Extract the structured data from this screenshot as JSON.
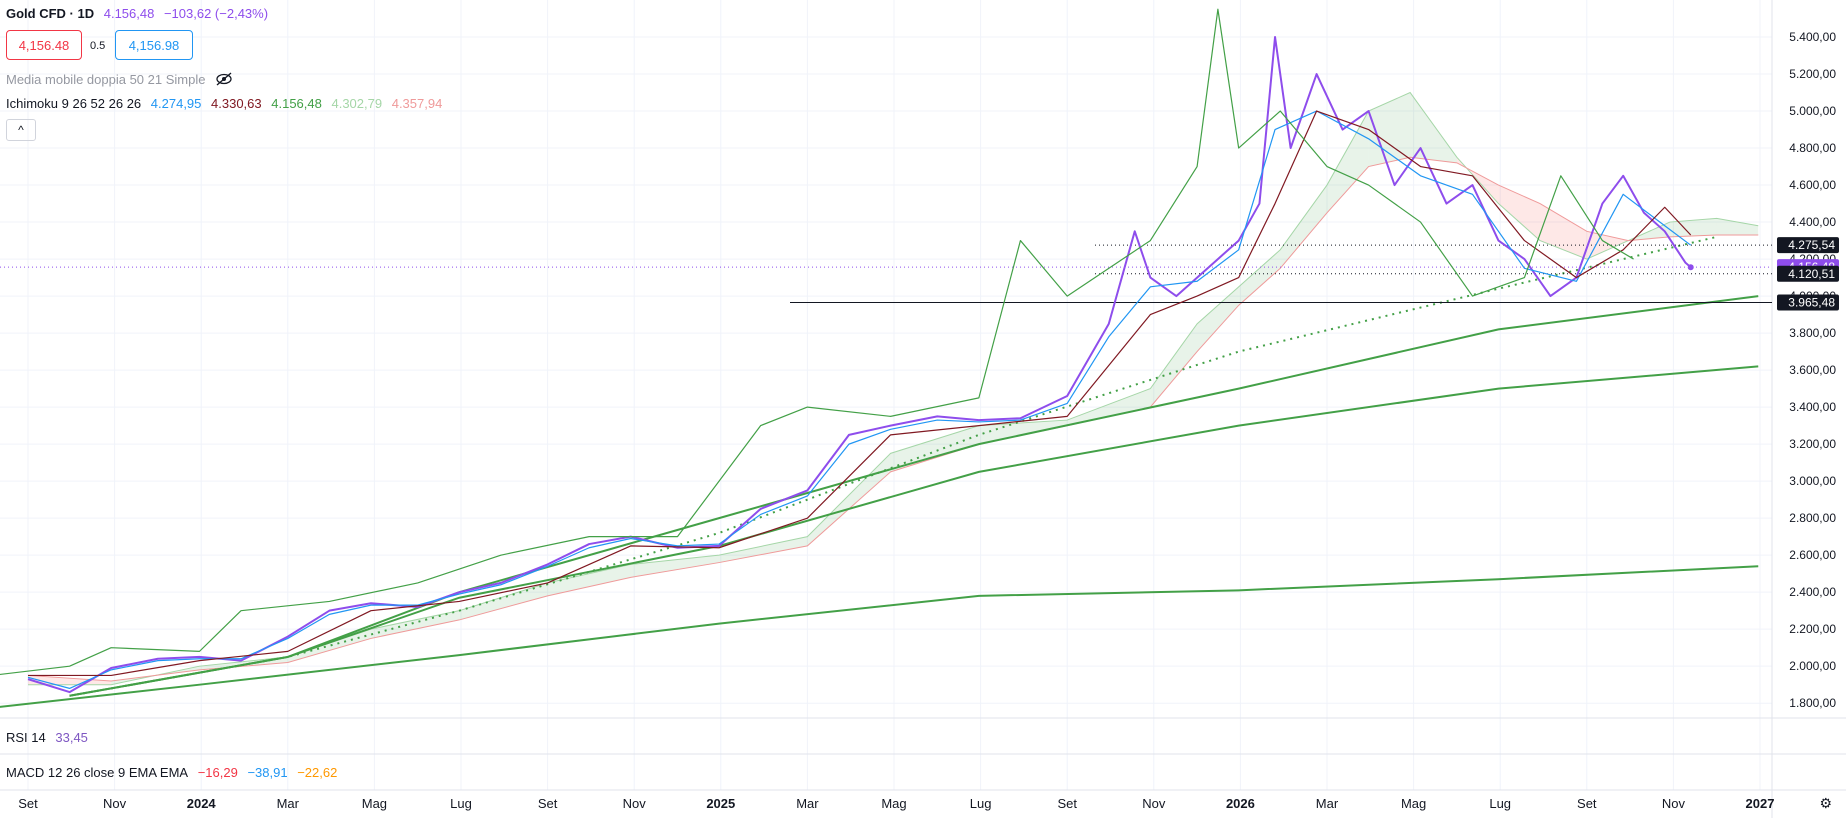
{
  "header": {
    "symbol": "Gold CFD · 1D",
    "last": "4.156,48",
    "change": "−103,62 (−2,43%)",
    "bid": "4,156.48",
    "spread": "0.5",
    "ask": "4,156.98"
  },
  "indicators": {
    "ma_label": "Media mobile doppia 50 21 Simple",
    "ichimoku_label": "Ichimoku 9 26 52 26 26",
    "ichimoku_values": [
      {
        "value": "4.274,95",
        "color": "#2196f3"
      },
      {
        "value": "4.330,63",
        "color": "#801922"
      },
      {
        "value": "4.156,48",
        "color": "#43a047"
      },
      {
        "value": "4.302,79",
        "color": "#a5d6a7"
      },
      {
        "value": "4.357,94",
        "color": "#ef9a9a"
      }
    ],
    "collapse": "^"
  },
  "rsi": {
    "label": "RSI 14",
    "value": "33,45"
  },
  "macd": {
    "label": "MACD 12 26 close 9 EMA EMA",
    "values": [
      {
        "value": "−16,29",
        "color": "#f23645"
      },
      {
        "value": "−38,91",
        "color": "#2196f3"
      },
      {
        "value": "−22,62",
        "color": "#ff9800"
      }
    ]
  },
  "chart_data": {
    "type": "line",
    "title": "Gold CFD · 1D",
    "xlabel": "",
    "ylabel": "",
    "ylim": [
      1720,
      5600
    ],
    "x_ticks": [
      "Set",
      "Nov",
      "2024",
      "Mar",
      "Mag",
      "Lug",
      "Set",
      "Nov",
      "2025",
      "Mar",
      "Mag",
      "Lug",
      "Set",
      "Nov",
      "2026",
      "Mar",
      "Mag",
      "Lug",
      "Set",
      "Nov",
      "2027"
    ],
    "x_bold": [
      "2024",
      "2025",
      "2026",
      "2027"
    ],
    "y_ticks": [
      1800,
      2000,
      2200,
      2400,
      2600,
      2800,
      3000,
      3200,
      3400,
      3600,
      3800,
      4000,
      4200,
      4400,
      4600,
      4800,
      5000,
      5200,
      5400
    ],
    "y_tick_labels": [
      "1.800,00",
      "2.000,00",
      "2.200,00",
      "2.400,00",
      "2.600,00",
      "2.800,00",
      "3.000,00",
      "3.200,00",
      "3.400,00",
      "3.600,00",
      "3.800,00",
      "4.000,00",
      "4.200,00",
      "4.400,00",
      "4.600,00",
      "4.800,00",
      "5.000,00",
      "5.200,00",
      "5.400,00"
    ],
    "price_levels": [
      {
        "value": 4275.54,
        "label": "4.275,54",
        "bg": "#131722",
        "style": "dotted"
      },
      {
        "value": 4156.48,
        "label": "4.156,48",
        "bg": "#8e4dec",
        "style": "dotted-current"
      },
      {
        "value": 4120.51,
        "label": "4.120,51",
        "bg": "#131722",
        "style": "dotted"
      },
      {
        "value": 3965.48,
        "label": "3.965,48",
        "bg": "#131722",
        "style": "solid"
      }
    ],
    "series": [
      {
        "name": "Close",
        "color": "#8e4dec",
        "points": [
          [
            2023.67,
            1930
          ],
          [
            2023.75,
            1860
          ],
          [
            2023.83,
            1990
          ],
          [
            2023.92,
            2040
          ],
          [
            2024.0,
            2050
          ],
          [
            2024.08,
            2030
          ],
          [
            2024.17,
            2160
          ],
          [
            2024.25,
            2300
          ],
          [
            2024.33,
            2340
          ],
          [
            2024.42,
            2320
          ],
          [
            2024.5,
            2400
          ],
          [
            2024.58,
            2450
          ],
          [
            2024.67,
            2550
          ],
          [
            2024.75,
            2660
          ],
          [
            2024.83,
            2700
          ],
          [
            2024.92,
            2640
          ],
          [
            2025.0,
            2650
          ],
          [
            2025.08,
            2850
          ],
          [
            2025.17,
            2950
          ],
          [
            2025.25,
            3250
          ],
          [
            2025.33,
            3300
          ],
          [
            2025.42,
            3350
          ],
          [
            2025.5,
            3330
          ],
          [
            2025.58,
            3340
          ],
          [
            2025.67,
            3460
          ],
          [
            2025.75,
            3850
          ],
          [
            2025.8,
            4350
          ],
          [
            2025.83,
            4100
          ],
          [
            2025.88,
            4000
          ],
          [
            2025.92,
            4100
          ],
          [
            2025.96,
            4200
          ],
          [
            2026.0,
            4300
          ],
          [
            2026.04,
            4500
          ],
          [
            2026.07,
            5400
          ],
          [
            2026.1,
            4800
          ],
          [
            2026.15,
            5200
          ],
          [
            2026.2,
            4900
          ],
          [
            2026.25,
            5000
          ],
          [
            2026.3,
            4600
          ],
          [
            2026.35,
            4800
          ],
          [
            2026.4,
            4500
          ],
          [
            2026.45,
            4600
          ],
          [
            2026.5,
            4300
          ],
          [
            2026.55,
            4200
          ],
          [
            2026.6,
            4000
          ],
          [
            2026.65,
            4100
          ],
          [
            2026.7,
            4500
          ],
          [
            2026.74,
            4650
          ],
          [
            2026.78,
            4450
          ],
          [
            2026.82,
            4350
          ],
          [
            2026.86,
            4180
          ],
          [
            2026.87,
            4156
          ]
        ]
      },
      {
        "name": "Conversion",
        "color": "#2196f3",
        "points": [
          [
            2023.67,
            1940
          ],
          [
            2023.75,
            1880
          ],
          [
            2023.83,
            1980
          ],
          [
            2023.92,
            2030
          ],
          [
            2024.0,
            2040
          ],
          [
            2024.08,
            2040
          ],
          [
            2024.17,
            2150
          ],
          [
            2024.25,
            2280
          ],
          [
            2024.33,
            2330
          ],
          [
            2024.42,
            2330
          ],
          [
            2024.5,
            2390
          ],
          [
            2024.58,
            2440
          ],
          [
            2024.67,
            2540
          ],
          [
            2024.75,
            2640
          ],
          [
            2024.83,
            2690
          ],
          [
            2024.92,
            2650
          ],
          [
            2025.0,
            2660
          ],
          [
            2025.08,
            2820
          ],
          [
            2025.17,
            2920
          ],
          [
            2025.25,
            3200
          ],
          [
            2025.33,
            3280
          ],
          [
            2025.42,
            3330
          ],
          [
            2025.5,
            3320
          ],
          [
            2025.58,
            3330
          ],
          [
            2025.67,
            3420
          ],
          [
            2025.75,
            3780
          ],
          [
            2025.83,
            4050
          ],
          [
            2025.92,
            4080
          ],
          [
            2026.0,
            4250
          ],
          [
            2026.07,
            4900
          ],
          [
            2026.15,
            5000
          ],
          [
            2026.25,
            4850
          ],
          [
            2026.35,
            4650
          ],
          [
            2026.45,
            4550
          ],
          [
            2026.55,
            4150
          ],
          [
            2026.65,
            4080
          ],
          [
            2026.74,
            4550
          ],
          [
            2026.82,
            4380
          ],
          [
            2026.87,
            4275
          ]
        ]
      },
      {
        "name": "Base",
        "color": "#801922",
        "points": [
          [
            2023.67,
            1950
          ],
          [
            2023.83,
            1950
          ],
          [
            2024.0,
            2030
          ],
          [
            2024.17,
            2080
          ],
          [
            2024.33,
            2300
          ],
          [
            2024.5,
            2350
          ],
          [
            2024.67,
            2450
          ],
          [
            2024.83,
            2650
          ],
          [
            2025.0,
            2640
          ],
          [
            2025.17,
            2800
          ],
          [
            2025.33,
            3250
          ],
          [
            2025.5,
            3300
          ],
          [
            2025.67,
            3350
          ],
          [
            2025.83,
            3900
          ],
          [
            2025.92,
            4000
          ],
          [
            2026.0,
            4100
          ],
          [
            2026.07,
            4500
          ],
          [
            2026.15,
            5000
          ],
          [
            2026.25,
            4900
          ],
          [
            2026.35,
            4700
          ],
          [
            2026.45,
            4650
          ],
          [
            2026.55,
            4300
          ],
          [
            2026.65,
            4100
          ],
          [
            2026.74,
            4250
          ],
          [
            2026.82,
            4480
          ],
          [
            2026.87,
            4330
          ]
        ]
      },
      {
        "name": "Lagging",
        "color": "#43a047",
        "points": [
          [
            2023.6,
            1950
          ],
          [
            2023.75,
            2000
          ],
          [
            2023.83,
            2100
          ],
          [
            2024.0,
            2080
          ],
          [
            2024.08,
            2300
          ],
          [
            2024.25,
            2350
          ],
          [
            2024.42,
            2450
          ],
          [
            2024.58,
            2600
          ],
          [
            2024.75,
            2700
          ],
          [
            2024.92,
            2700
          ],
          [
            2025.08,
            3300
          ],
          [
            2025.17,
            3400
          ],
          [
            2025.33,
            3350
          ],
          [
            2025.5,
            3450
          ],
          [
            2025.58,
            4300
          ],
          [
            2025.67,
            4000
          ],
          [
            2025.83,
            4300
          ],
          [
            2025.92,
            4700
          ],
          [
            2025.96,
            5550
          ],
          [
            2026.0,
            4800
          ],
          [
            2026.08,
            5000
          ],
          [
            2026.17,
            4700
          ],
          [
            2026.25,
            4600
          ],
          [
            2026.35,
            4400
          ],
          [
            2026.45,
            4000
          ],
          [
            2026.55,
            4100
          ],
          [
            2026.62,
            4650
          ],
          [
            2026.7,
            4300
          ],
          [
            2026.76,
            4200
          ]
        ]
      }
    ],
    "cloud": {
      "span_a": {
        "name": "Leading Span A",
        "color": "#a5d6a7",
        "points": [
          [
            2023.67,
            1900
          ],
          [
            2023.83,
            1900
          ],
          [
            2024.0,
            2000
          ],
          [
            2024.17,
            2050
          ],
          [
            2024.33,
            2200
          ],
          [
            2024.5,
            2300
          ],
          [
            2024.67,
            2450
          ],
          [
            2024.83,
            2550
          ],
          [
            2025.0,
            2600
          ],
          [
            2025.17,
            2700
          ],
          [
            2025.33,
            3150
          ],
          [
            2025.5,
            3300
          ],
          [
            2025.67,
            3330
          ],
          [
            2025.83,
            3500
          ],
          [
            2025.92,
            3850
          ],
          [
            2026.0,
            4050
          ],
          [
            2026.08,
            4250
          ],
          [
            2026.17,
            4600
          ],
          [
            2026.25,
            5000
          ],
          [
            2026.33,
            5100
          ],
          [
            2026.42,
            4750
          ],
          [
            2026.5,
            4500
          ],
          [
            2026.58,
            4300
          ],
          [
            2026.67,
            4200
          ],
          [
            2026.75,
            4300
          ],
          [
            2026.83,
            4400
          ],
          [
            2026.92,
            4420
          ],
          [
            2027.0,
            4380
          ]
        ]
      },
      "span_b": {
        "name": "Leading Span B",
        "color": "#ef9a9a",
        "points": [
          [
            2023.67,
            1950
          ],
          [
            2023.83,
            1920
          ],
          [
            2024.0,
            1980
          ],
          [
            2024.17,
            2020
          ],
          [
            2024.33,
            2150
          ],
          [
            2024.5,
            2250
          ],
          [
            2024.67,
            2380
          ],
          [
            2024.83,
            2480
          ],
          [
            2025.0,
            2560
          ],
          [
            2025.17,
            2650
          ],
          [
            2025.33,
            3050
          ],
          [
            2025.5,
            3200
          ],
          [
            2025.67,
            3300
          ],
          [
            2025.83,
            3400
          ],
          [
            2025.92,
            3700
          ],
          [
            2026.0,
            3950
          ],
          [
            2026.08,
            4150
          ],
          [
            2026.17,
            4450
          ],
          [
            2026.25,
            4700
          ],
          [
            2026.33,
            4750
          ],
          [
            2026.42,
            4720
          ],
          [
            2026.5,
            4600
          ],
          [
            2026.58,
            4500
          ],
          [
            2026.67,
            4350
          ],
          [
            2026.75,
            4300
          ],
          [
            2026.83,
            4320
          ],
          [
            2026.92,
            4330
          ],
          [
            2027.0,
            4330
          ]
        ]
      }
    },
    "trendlines": [
      {
        "name": "",
        "color": "#43a047",
        "style": "solid",
        "points": [
          [
            2023.6,
            1775
          ],
          [
            2024.0,
            1900
          ],
          [
            2024.5,
            2060
          ],
          [
            2025.0,
            2230
          ],
          [
            2025.5,
            2380
          ],
          [
            2026.0,
            2410
          ],
          [
            2026.5,
            2470
          ],
          [
            2027.0,
            2540
          ]
        ]
      },
      {
        "name": "",
        "color": "#43a047",
        "style": "solid",
        "points": [
          [
            2023.75,
            1840
          ],
          [
            2024.17,
            2050
          ],
          [
            2024.5,
            2370
          ],
          [
            2025.0,
            2650
          ],
          [
            2025.5,
            3050
          ],
          [
            2026.0,
            3300
          ],
          [
            2026.5,
            3500
          ],
          [
            2027.0,
            3620
          ]
        ]
      },
      {
        "name": "",
        "color": "#43a047",
        "style": "solid",
        "points": [
          [
            2023.75,
            1840
          ],
          [
            2024.17,
            2050
          ],
          [
            2024.5,
            2400
          ],
          [
            2025.0,
            2800
          ],
          [
            2025.5,
            3200
          ],
          [
            2026.0,
            3500
          ],
          [
            2026.5,
            3820
          ],
          [
            2027.0,
            4000
          ]
        ]
      },
      {
        "name": "",
        "color": "#43a047",
        "style": "dotted",
        "points": [
          [
            2023.75,
            1840
          ],
          [
            2024.17,
            2050
          ],
          [
            2024.5,
            2300
          ],
          [
            2025.0,
            2720
          ],
          [
            2025.5,
            3250
          ],
          [
            2026.0,
            3700
          ],
          [
            2026.5,
            4040
          ],
          [
            2026.92,
            4320
          ]
        ]
      }
    ]
  }
}
